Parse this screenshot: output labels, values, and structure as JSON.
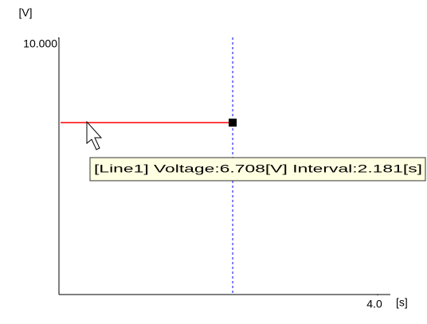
{
  "chart_data": {
    "type": "line",
    "y_label": "[V]",
    "x_label": "[s]",
    "x": [
      0,
      2.181
    ],
    "series": [
      {
        "color": "#ff0000",
        "values": [
          6.708,
          6.708
        ]
      }
    ],
    "xlim": [
      0,
      4.0
    ],
    "ylim": [
      0,
      10
    ],
    "xticks": [
      {
        "value": 4.0,
        "label": "4.0"
      }
    ],
    "yticks": [
      {
        "value": 10,
        "label": "10.000"
      }
    ],
    "cursor_color": "#0000ff",
    "annotation": "[Line1] Voltage:6.708[V] Interval:2.181[s]"
  }
}
